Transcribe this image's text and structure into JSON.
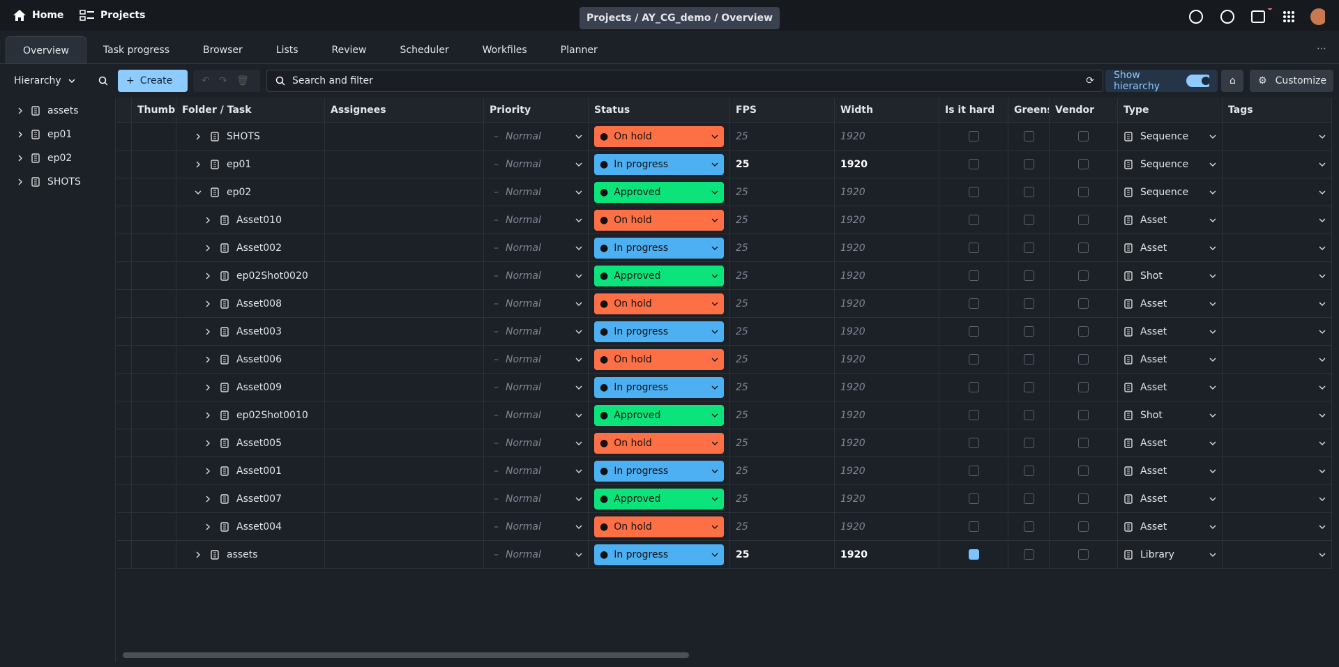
{
  "header": {
    "home": "Home",
    "projects": "Projects",
    "breadcrumb": "Projects / AY_CG_demo / Overview"
  },
  "tabs": [
    "Overview",
    "Task progress",
    "Browser",
    "Lists",
    "Review",
    "Scheduler",
    "Workfiles",
    "Planner"
  ],
  "toolbar": {
    "hierarchy": "Hierarchy",
    "create": "Create",
    "search": "Search and filter",
    "show_hierarchy": "Show hierarchy",
    "customize": "Customize"
  },
  "sidebar": [
    "assets",
    "ep01",
    "ep02",
    "SHOTS"
  ],
  "table": {
    "columns": [
      "Thumbn",
      "Folder / Task",
      "Assignees",
      "Priority",
      "Status",
      "FPS",
      "Width",
      "Is it hard",
      "Greens",
      "Vendor",
      "Type",
      "Tags"
    ],
    "rows": [
      {
        "name": "SHOTS",
        "priority": "Normal",
        "status": "On hold",
        "status_color": "#fd7045",
        "fps": 25,
        "width": 1920,
        "inherited": true,
        "is_hard": false,
        "greens": false,
        "vendor": false,
        "type": "Sequence"
      },
      {
        "name": "ep01",
        "priority": "Normal",
        "status": "In progress",
        "status_color": "#4cb0f3",
        "fps": 25,
        "width": 1920,
        "inherited": false,
        "is_hard": false,
        "greens": false,
        "vendor": false,
        "type": "Sequence"
      },
      {
        "name": "ep02",
        "priority": "Normal",
        "status": "Approved",
        "status_color": "#0ae47a",
        "fps": 25,
        "width": 1920,
        "inherited": true,
        "is_hard": false,
        "greens": false,
        "vendor": false,
        "type": "Sequence",
        "children": [
          {
            "name": "Asset010",
            "priority": "Normal",
            "status": "On hold",
            "status_color": "#fd7045",
            "fps": 25,
            "width": 1920,
            "inherited": true,
            "is_hard": false,
            "greens": false,
            "vendor": false,
            "type": "Asset"
          },
          {
            "name": "Asset002",
            "priority": "Normal",
            "status": "In progress",
            "status_color": "#4cb0f3",
            "fps": 25,
            "width": 1920,
            "inherited": true,
            "is_hard": false,
            "greens": false,
            "vendor": false,
            "type": "Asset"
          },
          {
            "name": "ep02Shot0020",
            "priority": "Normal",
            "status": "Approved",
            "status_color": "#0ae47a",
            "fps": 25,
            "width": 1920,
            "inherited": true,
            "is_hard": false,
            "greens": false,
            "vendor": false,
            "type": "Shot"
          },
          {
            "name": "Asset008",
            "priority": "Normal",
            "status": "On hold",
            "status_color": "#fd7045",
            "fps": 25,
            "width": 1920,
            "inherited": true,
            "is_hard": false,
            "greens": false,
            "vendor": false,
            "type": "Asset"
          },
          {
            "name": "Asset003",
            "priority": "Normal",
            "status": "In progress",
            "status_color": "#4cb0f3",
            "fps": 25,
            "width": 1920,
            "inherited": true,
            "is_hard": false,
            "greens": false,
            "vendor": false,
            "type": "Asset"
          },
          {
            "name": "Asset006",
            "priority": "Normal",
            "status": "On hold",
            "status_color": "#fd7045",
            "fps": 25,
            "width": 1920,
            "inherited": true,
            "is_hard": false,
            "greens": false,
            "vendor": false,
            "type": "Asset"
          },
          {
            "name": "Asset009",
            "priority": "Normal",
            "status": "In progress",
            "status_color": "#4cb0f3",
            "fps": 25,
            "width": 1920,
            "inherited": true,
            "is_hard": false,
            "greens": false,
            "vendor": false,
            "type": "Asset"
          },
          {
            "name": "ep02Shot0010",
            "priority": "Normal",
            "status": "Approved",
            "status_color": "#0ae47a",
            "fps": 25,
            "width": 1920,
            "inherited": true,
            "is_hard": false,
            "greens": false,
            "vendor": false,
            "type": "Shot"
          },
          {
            "name": "Asset005",
            "priority": "Normal",
            "status": "On hold",
            "status_color": "#fd7045",
            "fps": 25,
            "width": 1920,
            "inherited": true,
            "is_hard": false,
            "greens": false,
            "vendor": false,
            "type": "Asset"
          },
          {
            "name": "Asset001",
            "priority": "Normal",
            "status": "In progress",
            "status_color": "#4cb0f3",
            "fps": 25,
            "width": 1920,
            "inherited": true,
            "is_hard": false,
            "greens": false,
            "vendor": false,
            "type": "Asset"
          },
          {
            "name": "Asset007",
            "priority": "Normal",
            "status": "Approved",
            "status_color": "#0ae47a",
            "fps": 25,
            "width": 1920,
            "inherited": true,
            "is_hard": false,
            "greens": false,
            "vendor": false,
            "type": "Asset"
          },
          {
            "name": "Asset004",
            "priority": "Normal",
            "status": "On hold",
            "status_color": "#fd7045",
            "fps": 25,
            "width": 1920,
            "inherited": true,
            "is_hard": false,
            "greens": false,
            "vendor": false,
            "type": "Asset"
          }
        ]
      },
      {
        "name": "assets",
        "priority": "Normal",
        "status": "In progress",
        "status_color": "#4cb0f3",
        "fps": 25,
        "width": 1920,
        "inherited": false,
        "is_hard": true,
        "greens": false,
        "vendor": false,
        "type": "Library"
      }
    ]
  }
}
